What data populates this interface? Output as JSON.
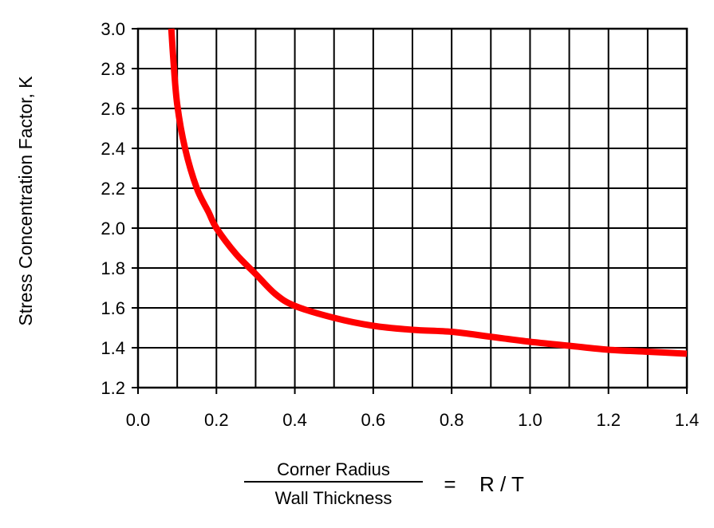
{
  "chart_data": {
    "type": "line",
    "title": "",
    "ylabel": "Stress Concentration Factor, K",
    "xlabel": {
      "numerator": "Corner Radius",
      "denominator": "Wall Thickness",
      "equals": "=",
      "ratio": "R / T"
    },
    "xlim": [
      0.0,
      1.4
    ],
    "ylim": [
      1.2,
      3.0
    ],
    "x_ticks": [
      "0.0",
      "0.2",
      "0.4",
      "0.6",
      "0.8",
      "1.0",
      "1.2",
      "1.4"
    ],
    "y_ticks": [
      "1.2",
      "1.4",
      "1.6",
      "1.8",
      "2.0",
      "2.2",
      "2.4",
      "2.6",
      "2.8",
      "3.0"
    ],
    "x_grid_step": 0.1,
    "y_grid_step": 0.2,
    "grid": true,
    "series": [
      {
        "color": "#ff0000",
        "x": [
          0.085,
          0.09,
          0.1,
          0.12,
          0.15,
          0.18,
          0.2,
          0.25,
          0.3,
          0.35,
          0.4,
          0.5,
          0.6,
          0.7,
          0.8,
          0.9,
          1.0,
          1.1,
          1.2,
          1.3,
          1.4
        ],
        "y": [
          3.0,
          2.85,
          2.62,
          2.4,
          2.2,
          2.08,
          2.0,
          1.87,
          1.77,
          1.67,
          1.61,
          1.55,
          1.51,
          1.49,
          1.48,
          1.455,
          1.43,
          1.41,
          1.39,
          1.38,
          1.37
        ]
      }
    ]
  }
}
